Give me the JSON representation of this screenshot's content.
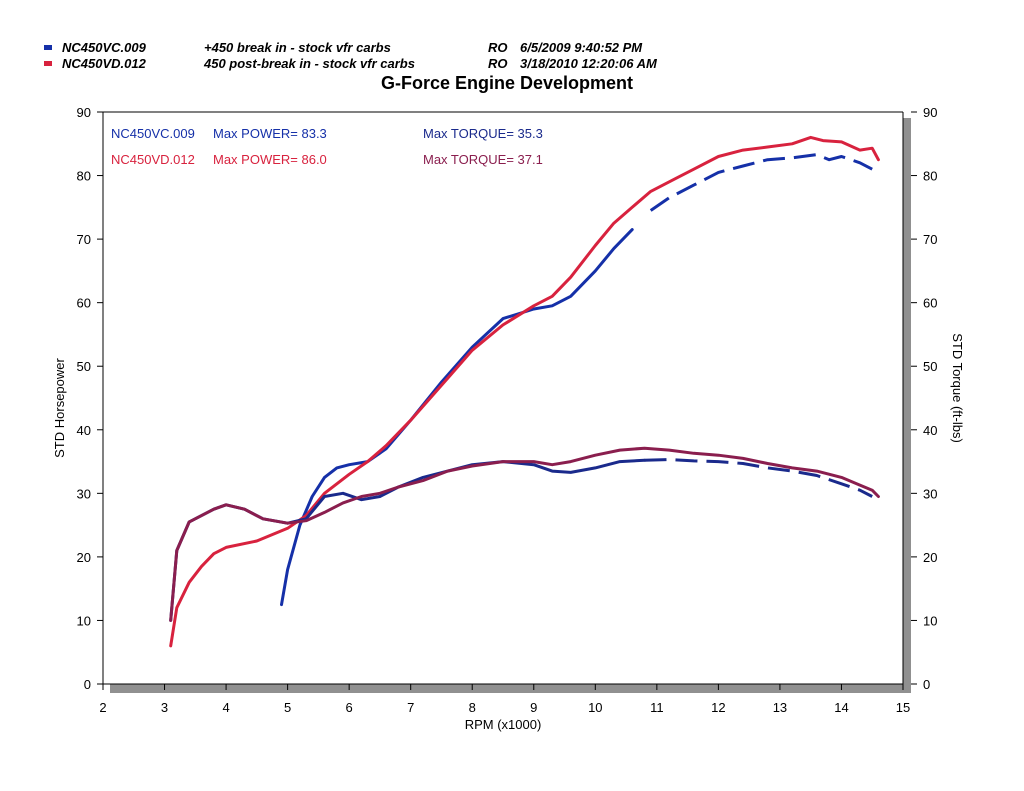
{
  "runs": [
    {
      "id": "NC450VC.009",
      "description": "+450 break in - stock vfr carbs",
      "operator": "RO",
      "datetime": "6/5/2009 9:40:52 PM",
      "color": "#1530a8"
    },
    {
      "id": "NC450VD.012",
      "description": "450 post-break in - stock vfr carbs",
      "operator": "RO",
      "datetime": "3/18/2010 12:20:06 AM",
      "color": "#d8223e"
    }
  ],
  "annotations": [
    {
      "run": "NC450VC.009",
      "power": "Max POWER= 83.3",
      "torque": "Max TORQUE= 35.3",
      "color": "#1530a8",
      "torque_color": "#1a2a8c"
    },
    {
      "run": "NC450VD.012",
      "power": "Max POWER= 86.0",
      "torque": "Max TORQUE= 37.1",
      "color": "#d8223e",
      "torque_color": "#8a1e4e"
    }
  ],
  "chart_data": {
    "type": "line",
    "title": "G-Force Engine Development",
    "xlabel": "RPM (x1000)",
    "ylabel": "STD Horsepower",
    "y2label": "STD Torque (ft-lbs)",
    "xlim": [
      2,
      15
    ],
    "ylim": [
      0,
      90
    ],
    "x_ticks": [
      2,
      3,
      4,
      5,
      6,
      7,
      8,
      9,
      10,
      11,
      12,
      13,
      14,
      15
    ],
    "y_ticks": [
      0,
      10,
      20,
      30,
      40,
      50,
      60,
      70,
      80,
      90
    ],
    "grid": false,
    "series": [
      {
        "name": "NC450VC.009 Power",
        "color": "#1530a8",
        "dashed_from": 10.8,
        "x": [
          4.9,
          5.0,
          5.2,
          5.4,
          5.6,
          5.8,
          6.0,
          6.3,
          6.6,
          7.0,
          7.5,
          8.0,
          8.5,
          9.0,
          9.3,
          9.6,
          10.0,
          10.3,
          10.6,
          10.9,
          11.2,
          11.6,
          12.0,
          12.4,
          12.8,
          13.2,
          13.6,
          13.8,
          14.0,
          14.3,
          14.5
        ],
        "y": [
          12.5,
          18,
          25,
          29.5,
          32.5,
          34,
          34.5,
          35,
          37,
          41.5,
          47.5,
          53,
          57.5,
          59,
          59.5,
          61,
          65,
          68.5,
          71.5,
          74.5,
          76.5,
          78.5,
          80.5,
          81.5,
          82.5,
          82.8,
          83.3,
          82.5,
          83.0,
          82.0,
          81.0
        ]
      },
      {
        "name": "NC450VD.012 Power",
        "color": "#d8223e",
        "x": [
          3.1,
          3.2,
          3.4,
          3.6,
          3.8,
          4.0,
          4.5,
          5.0,
          5.3,
          5.6,
          6.0,
          6.3,
          6.6,
          7.0,
          7.5,
          8.0,
          8.5,
          9.0,
          9.3,
          9.6,
          10.0,
          10.3,
          10.6,
          10.9,
          11.3,
          11.6,
          12.0,
          12.4,
          12.8,
          13.2,
          13.5,
          13.7,
          14.0,
          14.3,
          14.5,
          14.6
        ],
        "y": [
          6,
          12,
          16,
          18.5,
          20.5,
          21.5,
          22.5,
          24.5,
          26.5,
          30,
          33,
          35,
          37.5,
          41.5,
          47,
          52.5,
          56.5,
          59.5,
          61,
          64,
          69,
          72.5,
          75,
          77.5,
          79.5,
          81,
          83,
          84,
          84.5,
          85,
          86,
          85.5,
          85.3,
          84.0,
          84.3,
          82.5
        ]
      },
      {
        "name": "NC450VC.009 Torque",
        "color": "#1a2a8c",
        "dashed_from": 10.8,
        "x": [
          3.1,
          3.2,
          3.4,
          3.6,
          3.8,
          4.0,
          4.3,
          4.6,
          5.0,
          5.3,
          5.6,
          5.9,
          6.2,
          6.5,
          6.8,
          7.2,
          7.6,
          8.0,
          8.5,
          9.0,
          9.3,
          9.6,
          10.0,
          10.4,
          10.8,
          11.2,
          11.6,
          12.0,
          12.4,
          12.8,
          13.2,
          13.6,
          14.0,
          14.3,
          14.5
        ],
        "y": [
          10,
          21,
          25.5,
          26.5,
          27.5,
          28.2,
          27.5,
          26,
          25.3,
          26,
          29.5,
          30,
          29,
          29.5,
          31,
          32.5,
          33.5,
          34.5,
          35,
          34.5,
          33.5,
          33.3,
          34,
          35,
          35.2,
          35.3,
          35.1,
          35,
          34.7,
          34,
          33.5,
          32.8,
          31.5,
          30.5,
          29.5
        ]
      },
      {
        "name": "NC450VD.012 Torque",
        "color": "#8a1e4e",
        "x": [
          3.1,
          3.2,
          3.4,
          3.6,
          3.8,
          4.0,
          4.3,
          4.6,
          5.0,
          5.3,
          5.6,
          5.9,
          6.2,
          6.5,
          6.8,
          7.2,
          7.6,
          8.0,
          8.5,
          9.0,
          9.3,
          9.6,
          10.0,
          10.4,
          10.8,
          11.2,
          11.6,
          12.0,
          12.4,
          12.8,
          13.2,
          13.6,
          14.0,
          14.3,
          14.5,
          14.6
        ],
        "y": [
          10,
          21,
          25.5,
          26.5,
          27.5,
          28.2,
          27.5,
          26,
          25.3,
          25.7,
          27,
          28.5,
          29.5,
          30,
          31,
          32,
          33.5,
          34.3,
          35,
          35,
          34.5,
          35,
          36,
          36.8,
          37.1,
          36.8,
          36.3,
          36,
          35.5,
          34.7,
          34,
          33.5,
          32.5,
          31.3,
          30.5,
          29.5
        ]
      }
    ]
  }
}
